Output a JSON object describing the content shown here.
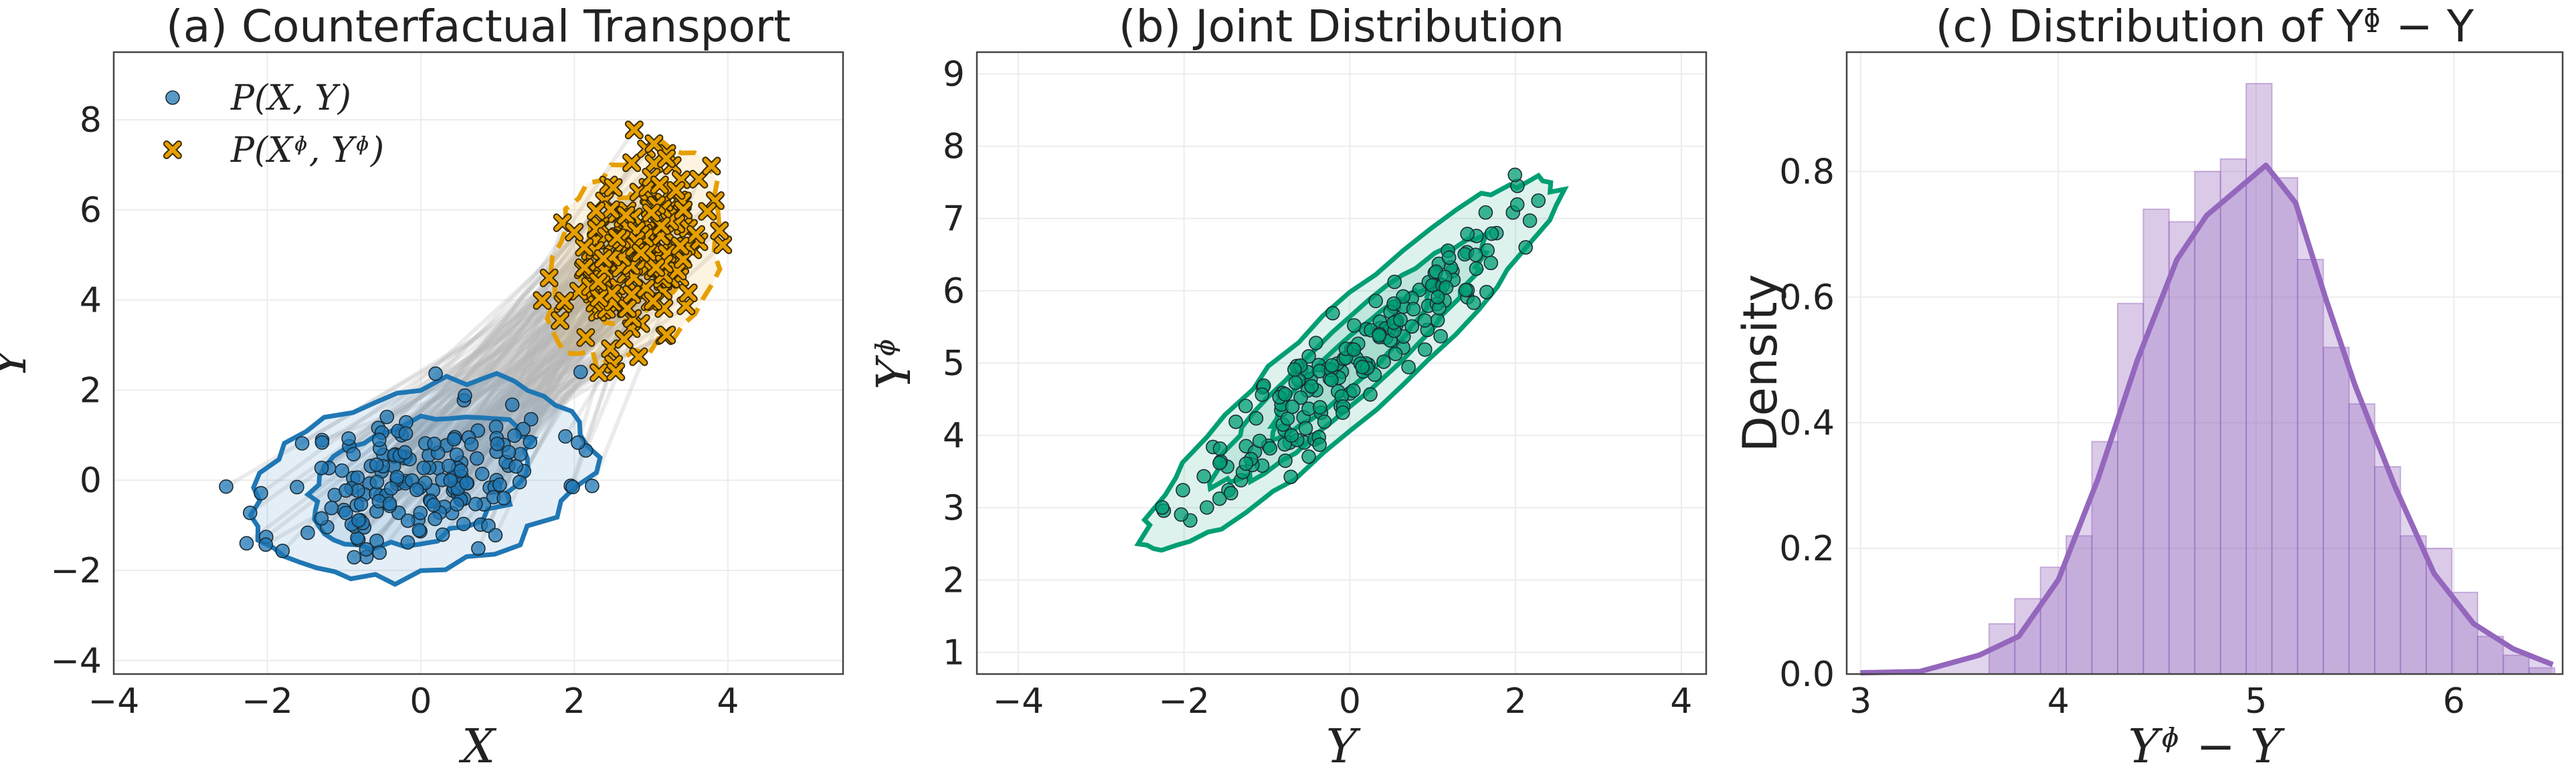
{
  "colors": {
    "blue": "#1f77b4",
    "orange": "#e69f00",
    "green": "#009e73",
    "purple": "#9467bd",
    "gray_lines": "#b8b8b8"
  },
  "chart_data": [
    {
      "type": "scatter",
      "title": "(a) Counterfactual Transport",
      "xlabel": "X",
      "ylabel": "Y",
      "xlim": [
        -4,
        5.5
      ],
      "ylim": [
        -4.3,
        9.5
      ],
      "xticks": [
        "−4",
        "−2",
        "0",
        "2",
        "4"
      ],
      "yticks": [
        "−4",
        "−2",
        "0",
        "2",
        "4",
        "6",
        "8"
      ],
      "grid": true,
      "legend_position": "top-left",
      "series": [
        {
          "name": "P(X, Y)",
          "marker": "circle",
          "color": "#1f77b4",
          "center": [
            0,
            0
          ],
          "spread": [
            0.9,
            0.9
          ],
          "rho": 0.35,
          "n": 180,
          "seed": 11
        },
        {
          "name": "P(Xᶲ, Yᶲ)",
          "marker": "x",
          "color": "#e69f00",
          "center": [
            2.8,
            5.0
          ],
          "spread": [
            0.45,
            0.95
          ],
          "rho": 0.3,
          "n": 180,
          "seed": 23
        }
      ],
      "transport_lines": true,
      "contours": [
        {
          "series": 0,
          "levels": [
            1.6,
            2.5
          ]
        },
        {
          "series": 1,
          "levels": [
            1.6,
            2.5
          ]
        }
      ]
    },
    {
      "type": "scatter",
      "title": "(b) Joint Distribution",
      "xlabel": "Y",
      "ylabel": "Yᶲ",
      "xlim": [
        -4.5,
        4.3
      ],
      "ylim": [
        0.7,
        9.3
      ],
      "xticks": [
        "−4",
        "−2",
        "0",
        "2",
        "4"
      ],
      "yticks": [
        "1",
        "2",
        "3",
        "4",
        "5",
        "6",
        "7",
        "8",
        "9"
      ],
      "grid": true,
      "series": [
        {
          "name": "",
          "marker": "circle",
          "color": "#009e73",
          "center": [
            0,
            5.0
          ],
          "spread": [
            0.95,
            1.0
          ],
          "rho": 0.93,
          "n": 190,
          "seed": 37
        }
      ],
      "contours": [
        {
          "series": 0,
          "levels": [
            1.0,
            1.7,
            2.6
          ]
        }
      ]
    },
    {
      "type": "bar",
      "title": "(c) Distribution of Yᶲ − Y",
      "xlabel": "Yᶲ − Y",
      "ylabel": "Density",
      "xlim": [
        2.93,
        6.55
      ],
      "ylim": [
        0,
        0.99
      ],
      "xticks": [
        "3",
        "4",
        "5",
        "6"
      ],
      "yticks": [
        "0.0",
        "0.2",
        "0.4",
        "0.6",
        "0.8"
      ],
      "grid": true,
      "bin_edges": [
        3.0,
        3.13,
        3.26,
        3.39,
        3.52,
        3.65,
        3.78,
        3.91,
        4.04,
        4.17,
        4.3,
        4.43,
        4.56,
        4.69,
        4.82,
        4.95,
        5.08,
        5.21,
        5.34,
        5.47,
        5.6,
        5.73,
        5.86,
        5.99,
        6.12,
        6.25,
        6.38,
        6.51
      ],
      "values": [
        0.005,
        0.0,
        0.0,
        0.0,
        0.0,
        0.08,
        0.12,
        0.17,
        0.22,
        0.37,
        0.59,
        0.74,
        0.72,
        0.8,
        0.82,
        0.94,
        0.79,
        0.66,
        0.52,
        0.43,
        0.33,
        0.22,
        0.2,
        0.13,
        0.06,
        0.03,
        0.01
      ],
      "kde": {
        "x": [
          3.0,
          3.3,
          3.6,
          3.8,
          4.0,
          4.2,
          4.4,
          4.6,
          4.75,
          4.9,
          5.05,
          5.2,
          5.35,
          5.5,
          5.7,
          5.9,
          6.1,
          6.3,
          6.5
        ],
        "y": [
          0.002,
          0.004,
          0.03,
          0.06,
          0.15,
          0.31,
          0.5,
          0.66,
          0.73,
          0.77,
          0.81,
          0.75,
          0.6,
          0.46,
          0.3,
          0.16,
          0.08,
          0.04,
          0.015
        ]
      }
    }
  ]
}
